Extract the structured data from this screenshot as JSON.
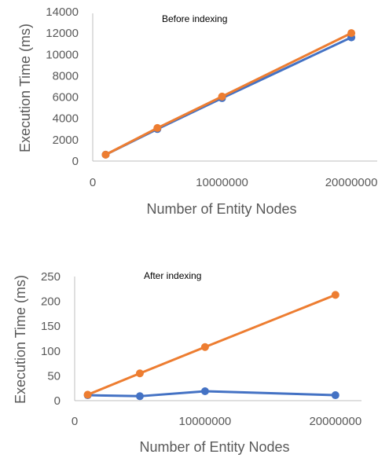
{
  "chart_data": [
    {
      "type": "line",
      "title": "Before indexing",
      "xlabel": "Number of Entity Nodes",
      "ylabel": "Execution Time (ms)",
      "xlim": [
        0,
        22000000
      ],
      "ylim": [
        0,
        14000
      ],
      "x_ticks": [
        "0",
        "10000000",
        "20000000"
      ],
      "y_ticks": [
        "0",
        "2000",
        "4000",
        "6000",
        "8000",
        "10000",
        "12000",
        "14000"
      ],
      "grid": false,
      "legend": "none",
      "series": [
        {
          "color": "#4472C4",
          "x": [
            1000000,
            5000000,
            10000000,
            20000000
          ],
          "y": [
            600,
            3000,
            5900,
            11600
          ]
        },
        {
          "color": "#ED7D31",
          "x": [
            1000000,
            5000000,
            10000000,
            20000000
          ],
          "y": [
            600,
            3100,
            6050,
            12000
          ]
        }
      ]
    },
    {
      "type": "line",
      "title": "After indexing",
      "xlabel": "Number of Entity Nodes",
      "ylabel": "Execution Time (ms)",
      "xlim": [
        0,
        22000000
      ],
      "ylim": [
        0,
        250
      ],
      "x_ticks": [
        "0",
        "10000000",
        "20000000"
      ],
      "y_ticks": [
        "0",
        "50",
        "100",
        "150",
        "200",
        "250"
      ],
      "grid": false,
      "legend": "none",
      "series": [
        {
          "color": "#4472C4",
          "x": [
            1000000,
            5000000,
            10000000,
            20000000
          ],
          "y": [
            11,
            9,
            19,
            11
          ]
        },
        {
          "color": "#ED7D31",
          "x": [
            1000000,
            5000000,
            10000000,
            20000000
          ],
          "y": [
            12,
            55,
            108,
            213
          ]
        }
      ]
    }
  ]
}
